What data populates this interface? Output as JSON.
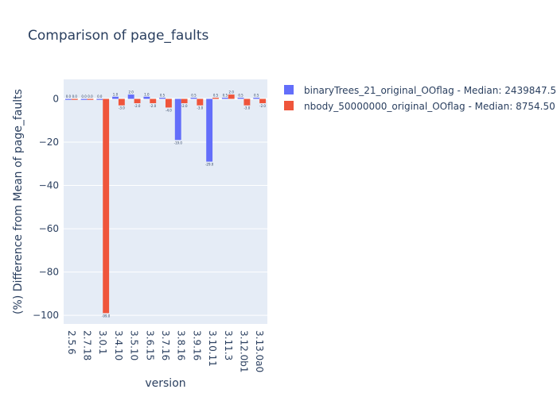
{
  "chart_data": {
    "type": "bar",
    "title": "Comparison of page_faults",
    "xlabel": "version",
    "ylabel": "(%) Difference from Mean of page_faults",
    "categories": [
      "2.5.6",
      "2.7.18",
      "3.0.1",
      "3.4.10",
      "3.5.10",
      "3.6.15",
      "3.7.16",
      "3.8.16",
      "3.9.16",
      "3.10.11",
      "3.11.3",
      "3.12.0b1",
      "3.13.0a0"
    ],
    "ylim": [
      -104,
      9
    ],
    "yticks": [
      0,
      -20,
      -40,
      -60,
      -80,
      -100
    ],
    "grid": true,
    "legend_position": "top-right",
    "series": [
      {
        "name": "binaryTrees_21_original_OOflag - Median: 2439847.50",
        "color": "#636efa",
        "values": [
          0.0,
          0.0,
          0.0,
          1.0,
          2.0,
          1.0,
          0.5,
          -19.0,
          0.5,
          -29.0,
          0.5,
          0.5,
          0.5
        ]
      },
      {
        "name": "nbody_50000000_original_OOflag - Median: 8754.50",
        "color": "#ef553b",
        "values": [
          0.0,
          0.0,
          -99.0,
          -3.0,
          -2.0,
          -2.0,
          -4.0,
          -2.0,
          -3.0,
          0.5,
          2.0,
          -3.0,
          -2.0
        ]
      }
    ]
  }
}
